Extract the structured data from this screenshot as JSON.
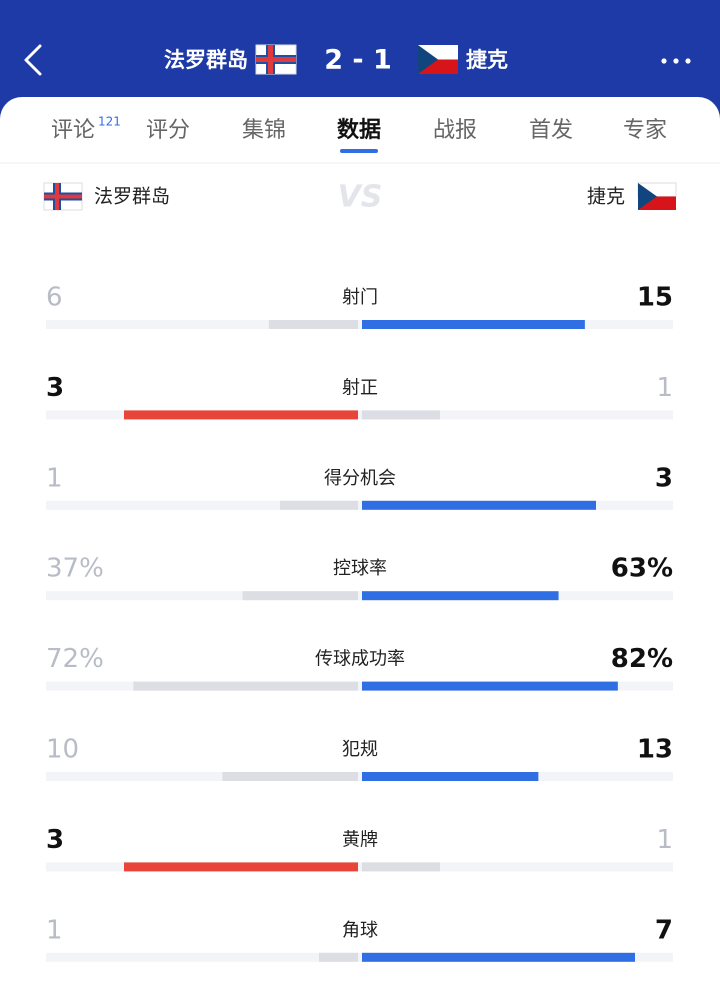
{
  "header": {
    "home_team": "法罗群岛",
    "score": "2 - 1",
    "away_team": "捷克"
  },
  "tabs": [
    {
      "label": "评论",
      "badge": "121"
    },
    {
      "label": "评分"
    },
    {
      "label": "集锦"
    },
    {
      "label": "数据",
      "active": true
    },
    {
      "label": "战报"
    },
    {
      "label": "首发"
    },
    {
      "label": "专家"
    }
  ],
  "teams": {
    "home": "法罗群岛",
    "vs": "VS",
    "away": "捷克"
  },
  "colors": {
    "home": "#e8443a",
    "away": "#2f6ee3",
    "muted": "#dcdee3"
  },
  "stats": [
    {
      "label": "射门",
      "home": 6,
      "away": 15
    },
    {
      "label": "射正",
      "home": 3,
      "away": 1
    },
    {
      "label": "得分机会",
      "home": 1,
      "away": 3
    },
    {
      "label": "控球率",
      "home": 37,
      "away": 63,
      "home_label": "37%",
      "away_label": "63%"
    },
    {
      "label": "传球成功率",
      "home": 72,
      "away": 82,
      "home_label": "72%",
      "away_label": "82%"
    },
    {
      "label": "犯规",
      "home": 10,
      "away": 13
    },
    {
      "label": "黄牌",
      "home": 3,
      "away": 1
    },
    {
      "label": "角球",
      "home": 1,
      "away": 7
    }
  ]
}
